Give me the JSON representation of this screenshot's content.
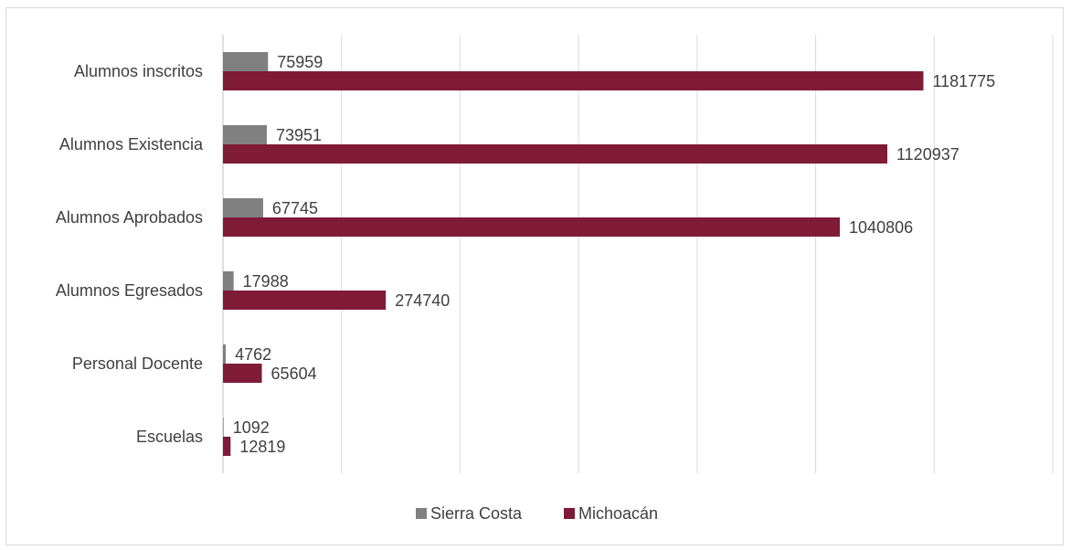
{
  "chart_data": {
    "type": "bar",
    "orientation": "horizontal",
    "categories": [
      "Alumnos inscritos",
      "Alumnos Existencia",
      "Alumnos Aprobados",
      "Alumnos Egresados",
      "Personal Docente",
      "Escuelas"
    ],
    "series": [
      {
        "name": "Sierra Costa",
        "color": "#808080",
        "values": [
          75959,
          73951,
          67745,
          17988,
          4762,
          1092
        ]
      },
      {
        "name": "Michoacán",
        "color": "#7f1b37",
        "values": [
          1181775,
          1120937,
          1040806,
          274740,
          65604,
          12819
        ]
      }
    ],
    "xlim": [
      0,
      1400000
    ],
    "grid": true,
    "legend_position": "bottom"
  }
}
